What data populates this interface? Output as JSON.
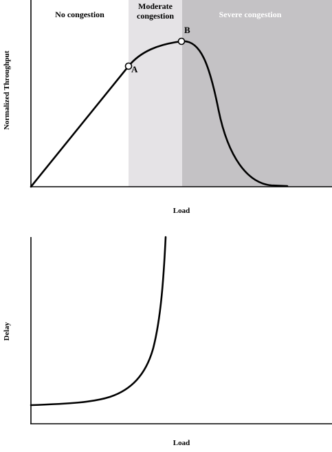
{
  "throughput_panel": {
    "zones": {
      "none": {
        "label": "No congestion",
        "color": "#ffffff"
      },
      "moderate": {
        "label_line1": "Moderate",
        "label_line2": "congestion",
        "color": "#e5e3e6"
      },
      "severe": {
        "label": "Severe  congestion",
        "color": "#c4c2c5"
      }
    },
    "points": {
      "a": "A",
      "b": "B"
    },
    "xlabel": "Load",
    "ylabel": "Normalized Throughput"
  },
  "delay_panel": {
    "xlabel": "Load",
    "ylabel": "Delay"
  },
  "colors": {
    "curve": "#000000",
    "axis": "#000000",
    "marker_fill": "#ffffff"
  }
}
